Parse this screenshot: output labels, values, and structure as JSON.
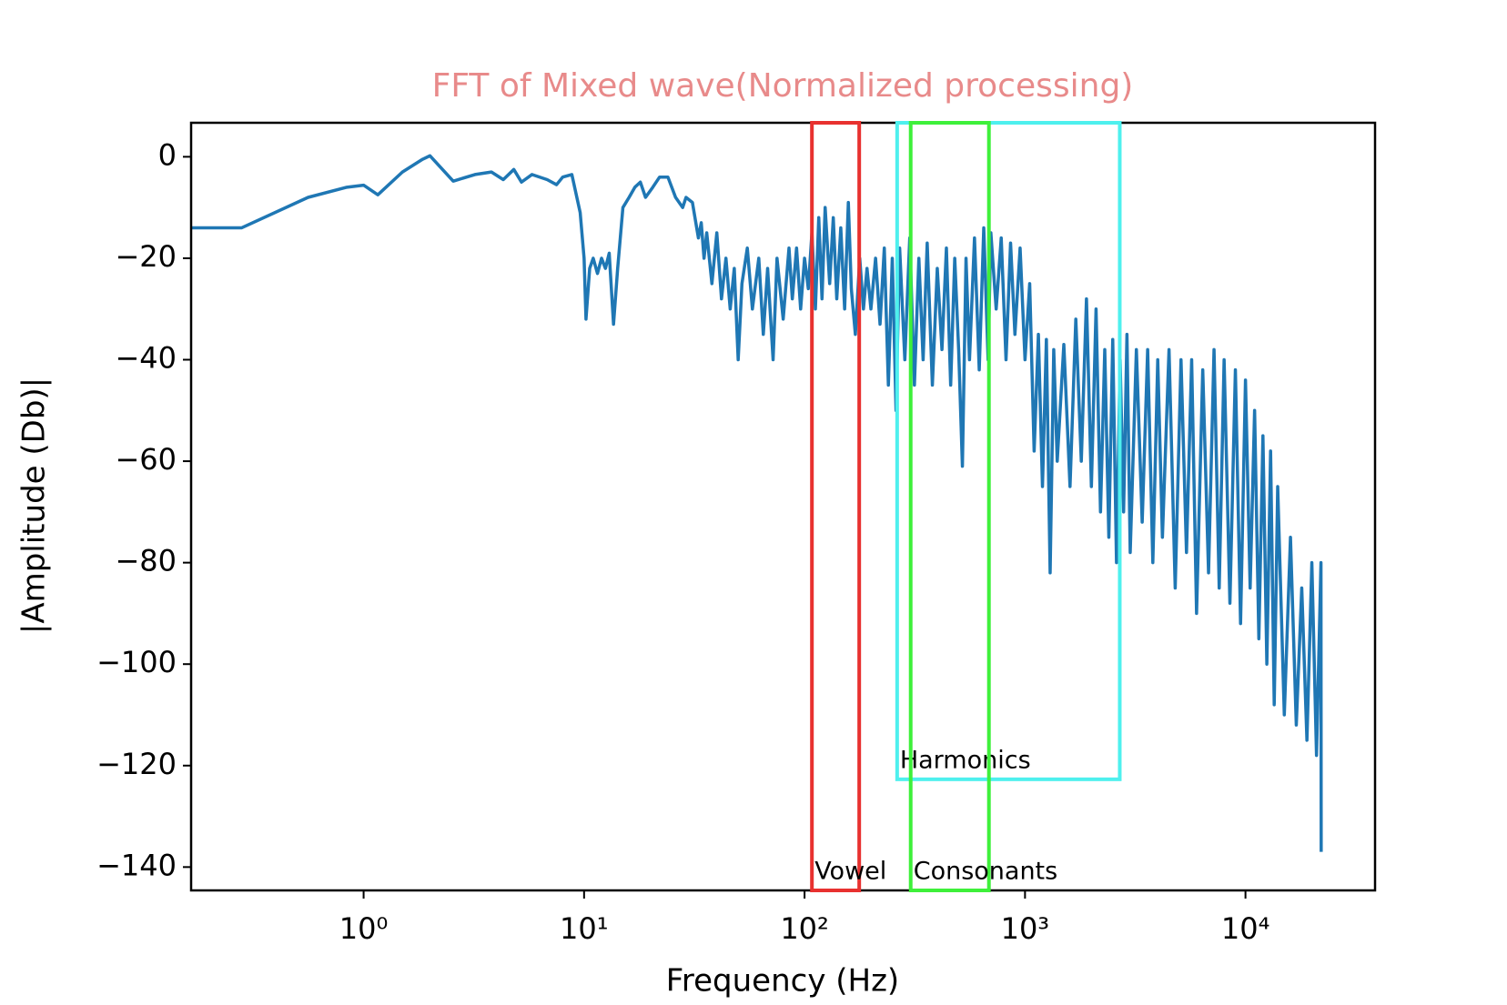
{
  "chart_data": {
    "type": "line",
    "title": "FFT of Mixed wave(Normalized processing)",
    "x_label": "Frequency (Hz)",
    "y_label": "|Amplitude (Db)|",
    "x_scale": "log",
    "color": "#1f77b4",
    "xlim": [
      0.165,
      38700
    ],
    "ylim": [
      -144.6,
      6.7
    ],
    "xticks": [
      {
        "value": 1,
        "label": "10⁰"
      },
      {
        "value": 10,
        "label": "10¹"
      },
      {
        "value": 100,
        "label": "10²"
      },
      {
        "value": 1000,
        "label": "10³"
      },
      {
        "value": 10000,
        "label": "10⁴"
      }
    ],
    "yticks": [
      0,
      {
        "value": -20,
        "label": "−20"
      },
      {
        "value": -40,
        "label": "−40"
      },
      {
        "value": -60,
        "label": "−60"
      },
      {
        "value": -80,
        "label": "−80"
      },
      {
        "value": -100,
        "label": "−100"
      },
      {
        "value": -120,
        "label": "−120"
      },
      {
        "value": -140,
        "label": "−140"
      }
    ],
    "x": [
      0.165,
      0.28,
      0.56,
      0.84,
      1.0,
      1.16,
      1.5,
      1.85,
      2.0,
      2.55,
      3.2,
      3.8,
      4.3,
      4.8,
      5.2,
      5.8,
      6.8,
      7.5,
      8,
      8.8,
      9.6,
      10.0,
      10.2,
      10.6,
      11,
      11.5,
      12,
      12.5,
      13,
      13.6,
      14.2,
      15,
      16,
      17,
      18,
      19,
      20.5,
      22,
      24,
      26,
      28,
      29,
      31,
      33,
      34,
      35,
      36,
      38,
      40,
      42,
      44,
      46,
      48,
      50,
      52,
      55,
      58,
      62,
      65,
      68,
      72,
      75,
      80,
      85,
      88,
      92,
      96,
      100,
      104,
      108,
      112,
      116,
      120,
      124,
      130,
      135,
      140,
      146,
      152,
      158,
      163,
      170,
      178,
      185,
      192,
      200,
      210,
      220,
      230,
      240,
      250,
      260,
      270,
      285,
      300,
      315,
      330,
      345,
      360,
      380,
      400,
      420,
      440,
      460,
      480,
      500,
      520,
      540,
      560,
      590,
      620,
      650,
      680,
      700,
      740,
      780,
      820,
      860,
      900,
      950,
      1000,
      1050,
      1100,
      1150,
      1200,
      1250,
      1300,
      1350,
      1400,
      1500,
      1600,
      1700,
      1800,
      1900,
      2000,
      2100,
      2200,
      2300,
      2400,
      2500,
      2600,
      2700,
      2800,
      2900,
      3000,
      3200,
      3400,
      3600,
      3800,
      4000,
      4200,
      4500,
      4800,
      5100,
      5400,
      5700,
      6000,
      6400,
      6800,
      7200,
      7600,
      8000,
      8500,
      9000,
      9500,
      10000,
      10500,
      11000,
      11500,
      12000,
      12500,
      13000,
      13500,
      14000,
      15000,
      16000,
      17000,
      18000,
      19000,
      20000,
      21000,
      22000,
      22050
    ],
    "values": [
      -14,
      -14,
      -8,
      -6,
      -5.6,
      -7.5,
      -3,
      -0.5,
      0.2,
      -4.8,
      -3.5,
      -3,
      -4.5,
      -2.5,
      -5,
      -3.5,
      -4.5,
      -5.5,
      -4,
      -3.5,
      -11,
      -20,
      -32,
      -22,
      -20,
      -23,
      -20,
      -22,
      -19,
      -33,
      -22,
      -10,
      -8,
      -6,
      -5,
      -8,
      -6,
      -4,
      -4,
      -8,
      -10,
      -8,
      -9,
      -16,
      -13,
      -20,
      -15,
      -25,
      -15,
      -28,
      -20,
      -30,
      -22,
      -40,
      -25,
      -18,
      -30,
      -20,
      -35,
      -22,
      -40,
      -20,
      -32,
      -18,
      -28,
      -18,
      -30,
      -20,
      -26,
      -15,
      -30,
      -12,
      -28,
      -10,
      -25,
      -12,
      -28,
      -14,
      -30,
      -9,
      -26,
      -35,
      -20,
      -30,
      -22,
      -30,
      -20,
      -33,
      -18,
      -45,
      -20,
      -50,
      -18,
      -40,
      -16,
      -45,
      -20,
      -40,
      -17,
      -45,
      -22,
      -38,
      -18,
      -45,
      -20,
      -38,
      -61,
      -20,
      -40,
      -16,
      -42,
      -14,
      -40,
      -15,
      -30,
      -16,
      -40,
      -17,
      -35,
      -18,
      -40,
      -25,
      -58,
      -35,
      -65,
      -36,
      -82,
      -38,
      -60,
      -37,
      -65,
      -32,
      -60,
      -28,
      -65,
      -30,
      -70,
      -38,
      -75,
      -36,
      -80,
      -40,
      -70,
      -35,
      -78,
      -38,
      -72,
      -38,
      -80,
      -40,
      -75,
      -38,
      -85,
      -40,
      -78,
      -40,
      -90,
      -42,
      -82,
      -38,
      -85,
      -40,
      -88,
      -42,
      -92,
      -44,
      -85,
      -50,
      -95,
      -55,
      -100,
      -58,
      -108,
      -65,
      -110,
      -75,
      -112,
      -85,
      -115,
      -80,
      -118,
      -80,
      -137
    ],
    "regions": [
      {
        "label": "Vowel",
        "color": "#e8312f",
        "xlim": [
          108,
          177
        ],
        "ylim": [
          -144.6,
          6.7
        ]
      },
      {
        "label": "Harmonics",
        "color": "#4ef0ee",
        "xlim": [
          263,
          2690
        ],
        "ylim": [
          -122.7,
          6.7
        ]
      },
      {
        "label": "Consonants",
        "color": "#3ef03a",
        "xlim": [
          303,
          686
        ],
        "ylim": [
          -144.6,
          6.7
        ]
      }
    ]
  }
}
